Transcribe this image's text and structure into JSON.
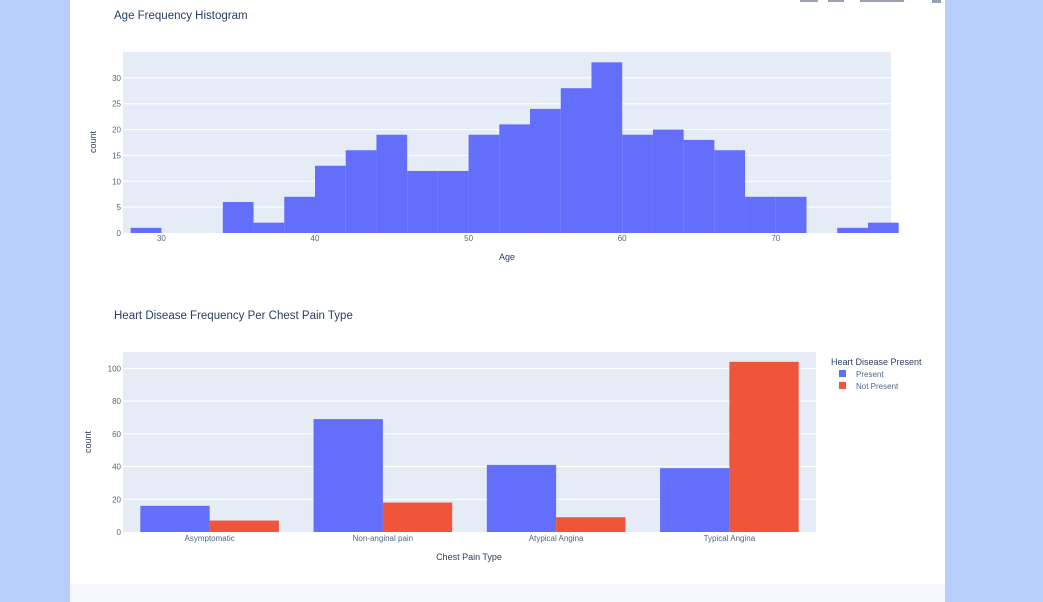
{
  "chart_data": [
    {
      "type": "bar",
      "subtype": "histogram",
      "title": "Age Frequency Histogram",
      "xlabel": "Age",
      "ylabel": "count",
      "xlim": [
        27.5,
        77.5
      ],
      "ylim": [
        0,
        35
      ],
      "xticks": [
        30,
        40,
        50,
        60,
        70
      ],
      "yticks": [
        0,
        5,
        10,
        15,
        20,
        25,
        30
      ],
      "bin_width": 2,
      "bin_starts": [
        28,
        30,
        32,
        34,
        36,
        38,
        40,
        42,
        44,
        46,
        48,
        50,
        52,
        54,
        56,
        58,
        60,
        62,
        64,
        66,
        68,
        70,
        72,
        74,
        76
      ],
      "values": [
        1,
        0,
        0,
        6,
        2,
        7,
        13,
        16,
        19,
        12,
        12,
        19,
        21,
        24,
        28,
        33,
        19,
        20,
        18,
        16,
        7,
        7,
        0,
        1,
        2
      ],
      "color": "#636efa",
      "grid": true
    },
    {
      "type": "bar",
      "subtype": "grouped",
      "title": "Heart Disease Frequency Per Chest Pain Type",
      "xlabel": "Chest Pain Type",
      "ylabel": "count",
      "ylim": [
        0,
        110
      ],
      "yticks": [
        0,
        20,
        40,
        60,
        80,
        100
      ],
      "categories": [
        "Asymptomatic",
        "Non-anginal pain",
        "Atypical Angina",
        "Typical Angina"
      ],
      "legend_title": "Heart Disease Present",
      "legend_position": "right",
      "series": [
        {
          "name": "Present",
          "values": [
            16,
            69,
            41,
            39
          ],
          "color": "#636efa"
        },
        {
          "name": "Not Present",
          "values": [
            7,
            18,
            9,
            104
          ],
          "color": "#ef553b"
        }
      ],
      "grid": true
    }
  ],
  "theme": {
    "plot_bg": "#e5ecf6",
    "grid": "#ffffff",
    "page_bg": "#b8cdfa"
  }
}
